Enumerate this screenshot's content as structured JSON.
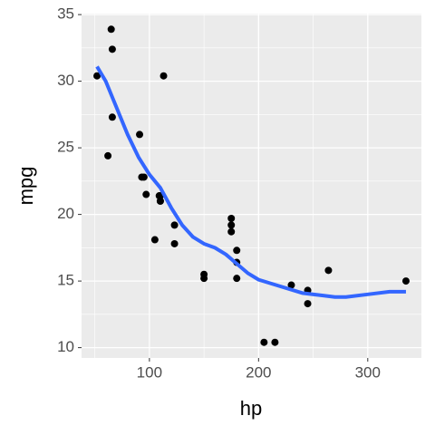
{
  "chart_data": {
    "type": "scatter",
    "x_label": "hp",
    "y_label": "mpg",
    "x": [
      110,
      110,
      93,
      110,
      175,
      105,
      245,
      62,
      95,
      123,
      123,
      180,
      180,
      180,
      205,
      215,
      230,
      66,
      52,
      65,
      97,
      150,
      150,
      245,
      175,
      66,
      91,
      113,
      264,
      175,
      335,
      109
    ],
    "values": [
      21,
      21,
      22.8,
      21.4,
      18.7,
      18.1,
      14.3,
      24.4,
      22.8,
      19.2,
      17.8,
      16.4,
      17.3,
      15.2,
      10.4,
      10.4,
      14.7,
      32.4,
      30.4,
      33.9,
      21.5,
      15.5,
      15.2,
      13.3,
      19.2,
      27.3,
      26,
      30.4,
      15.8,
      19.7,
      15,
      21.4
    ],
    "color": "#000000",
    "smooth": {
      "color": "#3366ff",
      "x": [
        52,
        60,
        70,
        80,
        90,
        100,
        110,
        120,
        130,
        140,
        150,
        160,
        170,
        180,
        190,
        200,
        220,
        240,
        260,
        270,
        280,
        300,
        320,
        335
      ],
      "values": [
        31.1,
        30,
        28,
        26,
        24.3,
        23,
        22,
        20.5,
        19.2,
        18.3,
        17.8,
        17.5,
        17,
        16.3,
        15.6,
        15.1,
        14.6,
        14.1,
        13.9,
        13.8,
        13.8,
        14,
        14.2,
        14.2
      ]
    },
    "xlim": [
      37.85,
      349.15
    ],
    "ylim": [
      9.225,
      35.075
    ],
    "xticks": [
      100,
      200,
      300
    ],
    "yticks": [
      10,
      15,
      20,
      25,
      30,
      35
    ],
    "grid": true
  }
}
